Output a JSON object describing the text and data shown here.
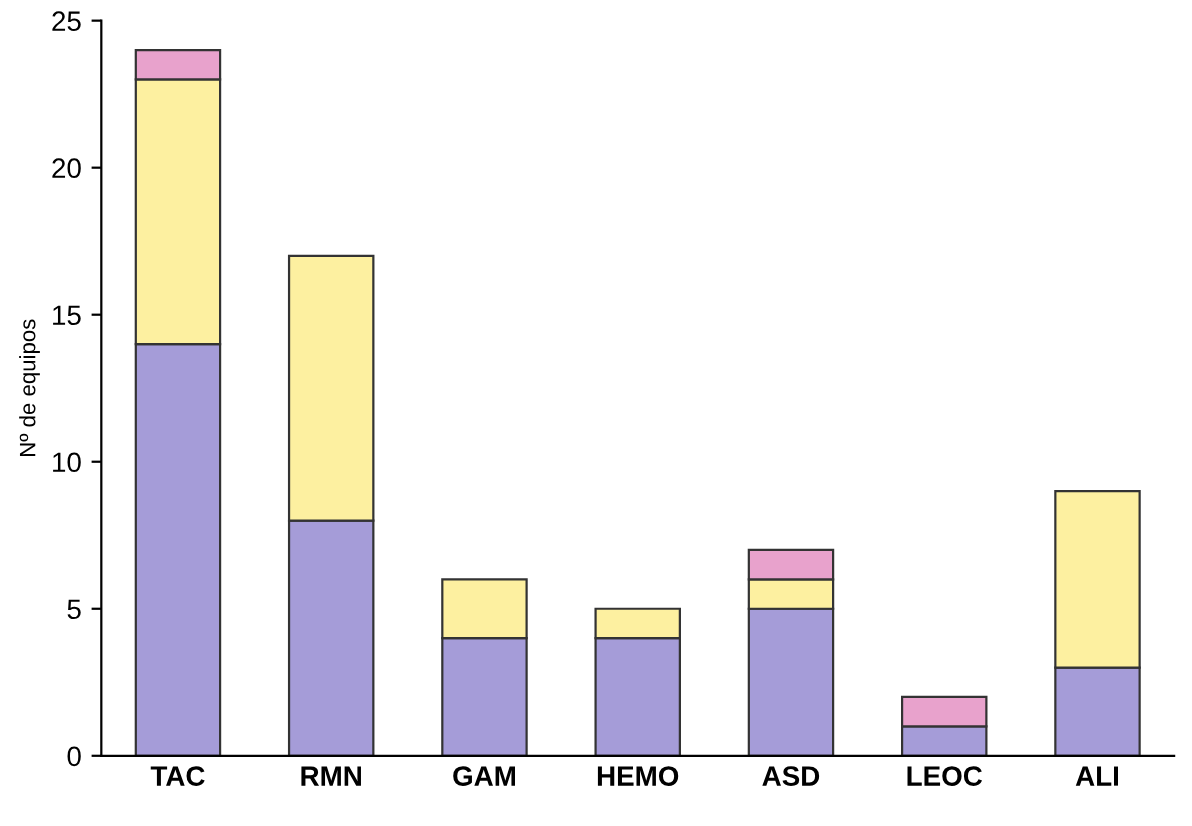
{
  "chart_data": {
    "type": "bar",
    "stacked": true,
    "ylabel": "Nº de equipos",
    "categories": [
      "TAC",
      "RMN",
      "GAM",
      "HEMO",
      "ASD",
      "LEOC",
      "ALI"
    ],
    "series": [
      {
        "color": "#a59cd8",
        "values": [
          14,
          8,
          4,
          4,
          5,
          1,
          3
        ]
      },
      {
        "color": "#fdf0a0",
        "values": [
          9,
          9,
          2,
          1,
          1,
          0,
          6
        ]
      },
      {
        "color": "#e8a2cc",
        "values": [
          1,
          0,
          0,
          0,
          1,
          1,
          0
        ]
      }
    ],
    "ylim": [
      0,
      25
    ],
    "yticks": [
      0,
      5,
      10,
      15,
      20,
      25
    ],
    "grid": false
  }
}
